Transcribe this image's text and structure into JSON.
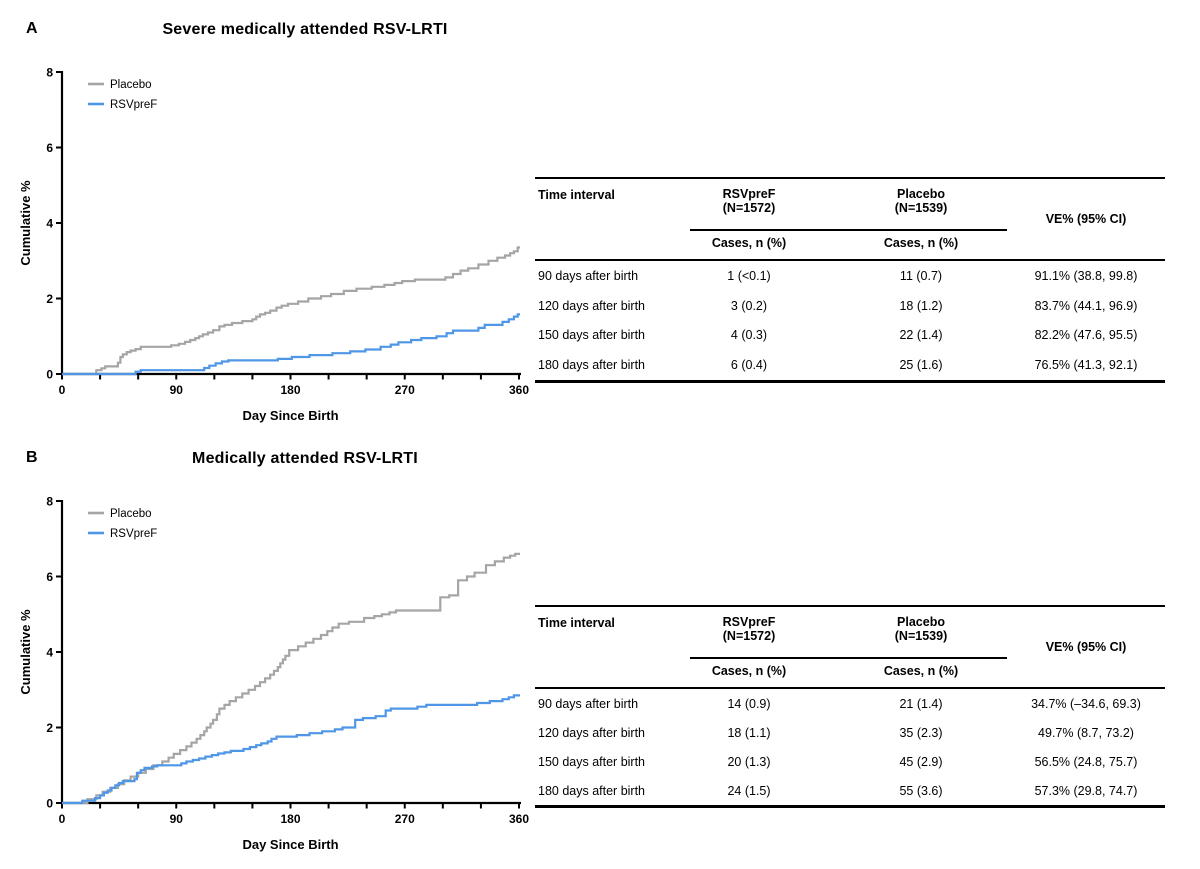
{
  "figure": {
    "background": "#ffffff",
    "panels": [
      {
        "label": "A",
        "table": {
          "col1_header": "Time interval",
          "group_headers": [
            {
              "line1": "RSVpreF",
              "line2": "(N=1572)"
            },
            {
              "line1": "Placebo",
              "line2": "(N=1539)"
            }
          ],
          "subheader": "Cases, n (%)",
          "ve_header": "VE% (95% CI)",
          "rows": [
            [
              "90 days after birth",
              "1 (<0.1)",
              "11 (0.7)",
              "91.1% (38.8, 99.8)"
            ],
            [
              "120 days after birth",
              "3 (0.2)",
              "18 (1.2)",
              "83.7% (44.1, 96.9)"
            ],
            [
              "150 days after birth",
              "4 (0.3)",
              "22 (1.4)",
              "82.2% (47.6, 95.5)"
            ],
            [
              "180 days after birth",
              "6 (0.4)",
              "25 (1.6)",
              "76.5% (41.3, 92.1)"
            ]
          ]
        }
      },
      {
        "label": "B",
        "table": {
          "col1_header": "Time interval",
          "group_headers": [
            {
              "line1": "RSVpreF",
              "line2": "(N=1572)"
            },
            {
              "line1": "Placebo",
              "line2": "(N=1539)"
            }
          ],
          "subheader": "Cases, n (%)",
          "ve_header": "VE% (95% CI)",
          "rows": [
            [
              "90 days after birth",
              "14 (0.9)",
              "21 (1.4)",
              "34.7% (–34.6, 69.3)"
            ],
            [
              "120 days after birth",
              "18 (1.1)",
              "35 (2.3)",
              "49.7% (8.7, 73.2)"
            ],
            [
              "150 days after birth",
              "20 (1.3)",
              "45 (2.9)",
              "56.5% (24.8, 75.7)"
            ],
            [
              "180 days after birth",
              "24 (1.5)",
              "55 (3.6)",
              "57.3% (29.8, 74.7)"
            ]
          ]
        }
      }
    ]
  },
  "chart_data": [
    {
      "type": "line",
      "line_style": "step-after",
      "title": "Severe medically attended RSV-LRTI",
      "xlabel": "Day Since Birth",
      "ylabel": "Cumulative %",
      "xlim": [
        0,
        360
      ],
      "ylim": [
        0,
        8
      ],
      "xticks": [
        0,
        90,
        180,
        270,
        360
      ],
      "x_minor_tick_interval": 30,
      "yticks": [
        0,
        2,
        4,
        6,
        8
      ],
      "grid": false,
      "legend_position": "top-left",
      "axis_color": "#000000",
      "series": [
        {
          "name": "Placebo",
          "color": "#a5a5a5",
          "points": [
            [
              0,
              0
            ],
            [
              27,
              0.1
            ],
            [
              31,
              0.15
            ],
            [
              34,
              0.2
            ],
            [
              44,
              0.3
            ],
            [
              46,
              0.45
            ],
            [
              48,
              0.52
            ],
            [
              51,
              0.58
            ],
            [
              54,
              0.62
            ],
            [
              58,
              0.66
            ],
            [
              62,
              0.72
            ],
            [
              86,
              0.76
            ],
            [
              92,
              0.8
            ],
            [
              97,
              0.85
            ],
            [
              101,
              0.9
            ],
            [
              105,
              0.95
            ],
            [
              108,
              1.0
            ],
            [
              111,
              1.05
            ],
            [
              115,
              1.1
            ],
            [
              119,
              1.16
            ],
            [
              124,
              1.26
            ],
            [
              128,
              1.3
            ],
            [
              134,
              1.35
            ],
            [
              142,
              1.4
            ],
            [
              150,
              1.45
            ],
            [
              153,
              1.52
            ],
            [
              156,
              1.58
            ],
            [
              160,
              1.62
            ],
            [
              164,
              1.68
            ],
            [
              169,
              1.76
            ],
            [
              173,
              1.81
            ],
            [
              178,
              1.86
            ],
            [
              186,
              1.92
            ],
            [
              194,
              2.0
            ],
            [
              204,
              2.06
            ],
            [
              212,
              2.12
            ],
            [
              222,
              2.2
            ],
            [
              232,
              2.26
            ],
            [
              244,
              2.31
            ],
            [
              254,
              2.36
            ],
            [
              262,
              2.41
            ],
            [
              268,
              2.46
            ],
            [
              278,
              2.5
            ],
            [
              302,
              2.56
            ],
            [
              308,
              2.65
            ],
            [
              314,
              2.74
            ],
            [
              320,
              2.8
            ],
            [
              328,
              2.9
            ],
            [
              336,
              3.0
            ],
            [
              343,
              3.08
            ],
            [
              349,
              3.14
            ],
            [
              353,
              3.2
            ],
            [
              356,
              3.25
            ],
            [
              359,
              3.35
            ]
          ]
        },
        {
          "name": "RSVpreF",
          "color": "#4f97e6",
          "points": [
            [
              0,
              0
            ],
            [
              58,
              0.06
            ],
            [
              62,
              0.1
            ],
            [
              112,
              0.16
            ],
            [
              116,
              0.22
            ],
            [
              121,
              0.28
            ],
            [
              126,
              0.33
            ],
            [
              131,
              0.36
            ],
            [
              170,
              0.4
            ],
            [
              181,
              0.45
            ],
            [
              195,
              0.5
            ],
            [
              213,
              0.55
            ],
            [
              227,
              0.6
            ],
            [
              239,
              0.65
            ],
            [
              251,
              0.72
            ],
            [
              259,
              0.78
            ],
            [
              265,
              0.84
            ],
            [
              275,
              0.9
            ],
            [
              283,
              0.95
            ],
            [
              295,
              1.0
            ],
            [
              303,
              1.08
            ],
            [
              308,
              1.15
            ],
            [
              328,
              1.22
            ],
            [
              333,
              1.3
            ],
            [
              347,
              1.38
            ],
            [
              352,
              1.45
            ],
            [
              356,
              1.52
            ],
            [
              359,
              1.58
            ]
          ]
        }
      ]
    },
    {
      "type": "line",
      "line_style": "step-after",
      "title": "Medically attended RSV-LRTI",
      "xlabel": "Day Since Birth",
      "ylabel": "Cumulative %",
      "xlim": [
        0,
        360
      ],
      "ylim": [
        0,
        8
      ],
      "xticks": [
        0,
        90,
        180,
        270,
        360
      ],
      "x_minor_tick_interval": 30,
      "yticks": [
        0,
        2,
        4,
        6,
        8
      ],
      "grid": false,
      "legend_position": "top-left",
      "axis_color": "#000000",
      "series": [
        {
          "name": "Placebo",
          "color": "#a5a5a5",
          "points": [
            [
              0,
              0
            ],
            [
              20,
              0.1
            ],
            [
              27,
              0.2
            ],
            [
              32,
              0.3
            ],
            [
              38,
              0.4
            ],
            [
              44,
              0.5
            ],
            [
              49,
              0.6
            ],
            [
              54,
              0.7
            ],
            [
              60,
              0.8
            ],
            [
              66,
              0.9
            ],
            [
              72,
              1.0
            ],
            [
              79,
              1.1
            ],
            [
              84,
              1.2
            ],
            [
              88,
              1.3
            ],
            [
              93,
              1.4
            ],
            [
              98,
              1.5
            ],
            [
              102,
              1.6
            ],
            [
              106,
              1.7
            ],
            [
              109,
              1.8
            ],
            [
              112,
              1.9
            ],
            [
              114,
              2.0
            ],
            [
              117,
              2.1
            ],
            [
              119,
              2.2
            ],
            [
              122,
              2.35
            ],
            [
              124,
              2.5
            ],
            [
              128,
              2.6
            ],
            [
              132,
              2.7
            ],
            [
              137,
              2.8
            ],
            [
              142,
              2.9
            ],
            [
              147,
              3.0
            ],
            [
              152,
              3.1
            ],
            [
              156,
              3.2
            ],
            [
              160,
              3.3
            ],
            [
              164,
              3.4
            ],
            [
              167,
              3.5
            ],
            [
              170,
              3.6
            ],
            [
              172,
              3.7
            ],
            [
              174,
              3.8
            ],
            [
              176,
              3.9
            ],
            [
              179,
              4.05
            ],
            [
              186,
              4.15
            ],
            [
              192,
              4.25
            ],
            [
              198,
              4.35
            ],
            [
              204,
              4.45
            ],
            [
              209,
              4.55
            ],
            [
              213,
              4.65
            ],
            [
              218,
              4.75
            ],
            [
              226,
              4.8
            ],
            [
              238,
              4.9
            ],
            [
              246,
              4.95
            ],
            [
              252,
              5.0
            ],
            [
              258,
              5.05
            ],
            [
              263,
              5.1
            ],
            [
              298,
              5.45
            ],
            [
              305,
              5.5
            ],
            [
              312,
              5.9
            ],
            [
              319,
              6.0
            ],
            [
              325,
              6.1
            ],
            [
              334,
              6.3
            ],
            [
              341,
              6.4
            ],
            [
              348,
              6.5
            ],
            [
              353,
              6.55
            ],
            [
              357,
              6.6
            ]
          ]
        },
        {
          "name": "RSVpreF",
          "color": "#4f97e6",
          "points": [
            [
              0,
              0
            ],
            [
              16,
              0.06
            ],
            [
              26,
              0.13
            ],
            [
              30,
              0.2
            ],
            [
              33,
              0.27
            ],
            [
              36,
              0.33
            ],
            [
              39,
              0.4
            ],
            [
              42,
              0.47
            ],
            [
              45,
              0.53
            ],
            [
              48,
              0.58
            ],
            [
              57,
              0.63
            ],
            [
              59,
              0.8
            ],
            [
              62,
              0.87
            ],
            [
              65,
              0.93
            ],
            [
              71,
              0.97
            ],
            [
              75,
              1.0
            ],
            [
              94,
              1.05
            ],
            [
              98,
              1.1
            ],
            [
              103,
              1.14
            ],
            [
              108,
              1.18
            ],
            [
              113,
              1.23
            ],
            [
              118,
              1.27
            ],
            [
              123,
              1.31
            ],
            [
              128,
              1.34
            ],
            [
              133,
              1.38
            ],
            [
              143,
              1.43
            ],
            [
              148,
              1.48
            ],
            [
              153,
              1.53
            ],
            [
              157,
              1.58
            ],
            [
              162,
              1.63
            ],
            [
              165,
              1.7
            ],
            [
              169,
              1.76
            ],
            [
              185,
              1.8
            ],
            [
              195,
              1.85
            ],
            [
              205,
              1.9
            ],
            [
              215,
              1.95
            ],
            [
              221,
              2.0
            ],
            [
              231,
              2.2
            ],
            [
              237,
              2.25
            ],
            [
              247,
              2.3
            ],
            [
              255,
              2.45
            ],
            [
              259,
              2.5
            ],
            [
              280,
              2.55
            ],
            [
              287,
              2.6
            ],
            [
              327,
              2.65
            ],
            [
              337,
              2.7
            ],
            [
              347,
              2.75
            ],
            [
              352,
              2.8
            ],
            [
              356,
              2.85
            ]
          ]
        }
      ]
    }
  ]
}
